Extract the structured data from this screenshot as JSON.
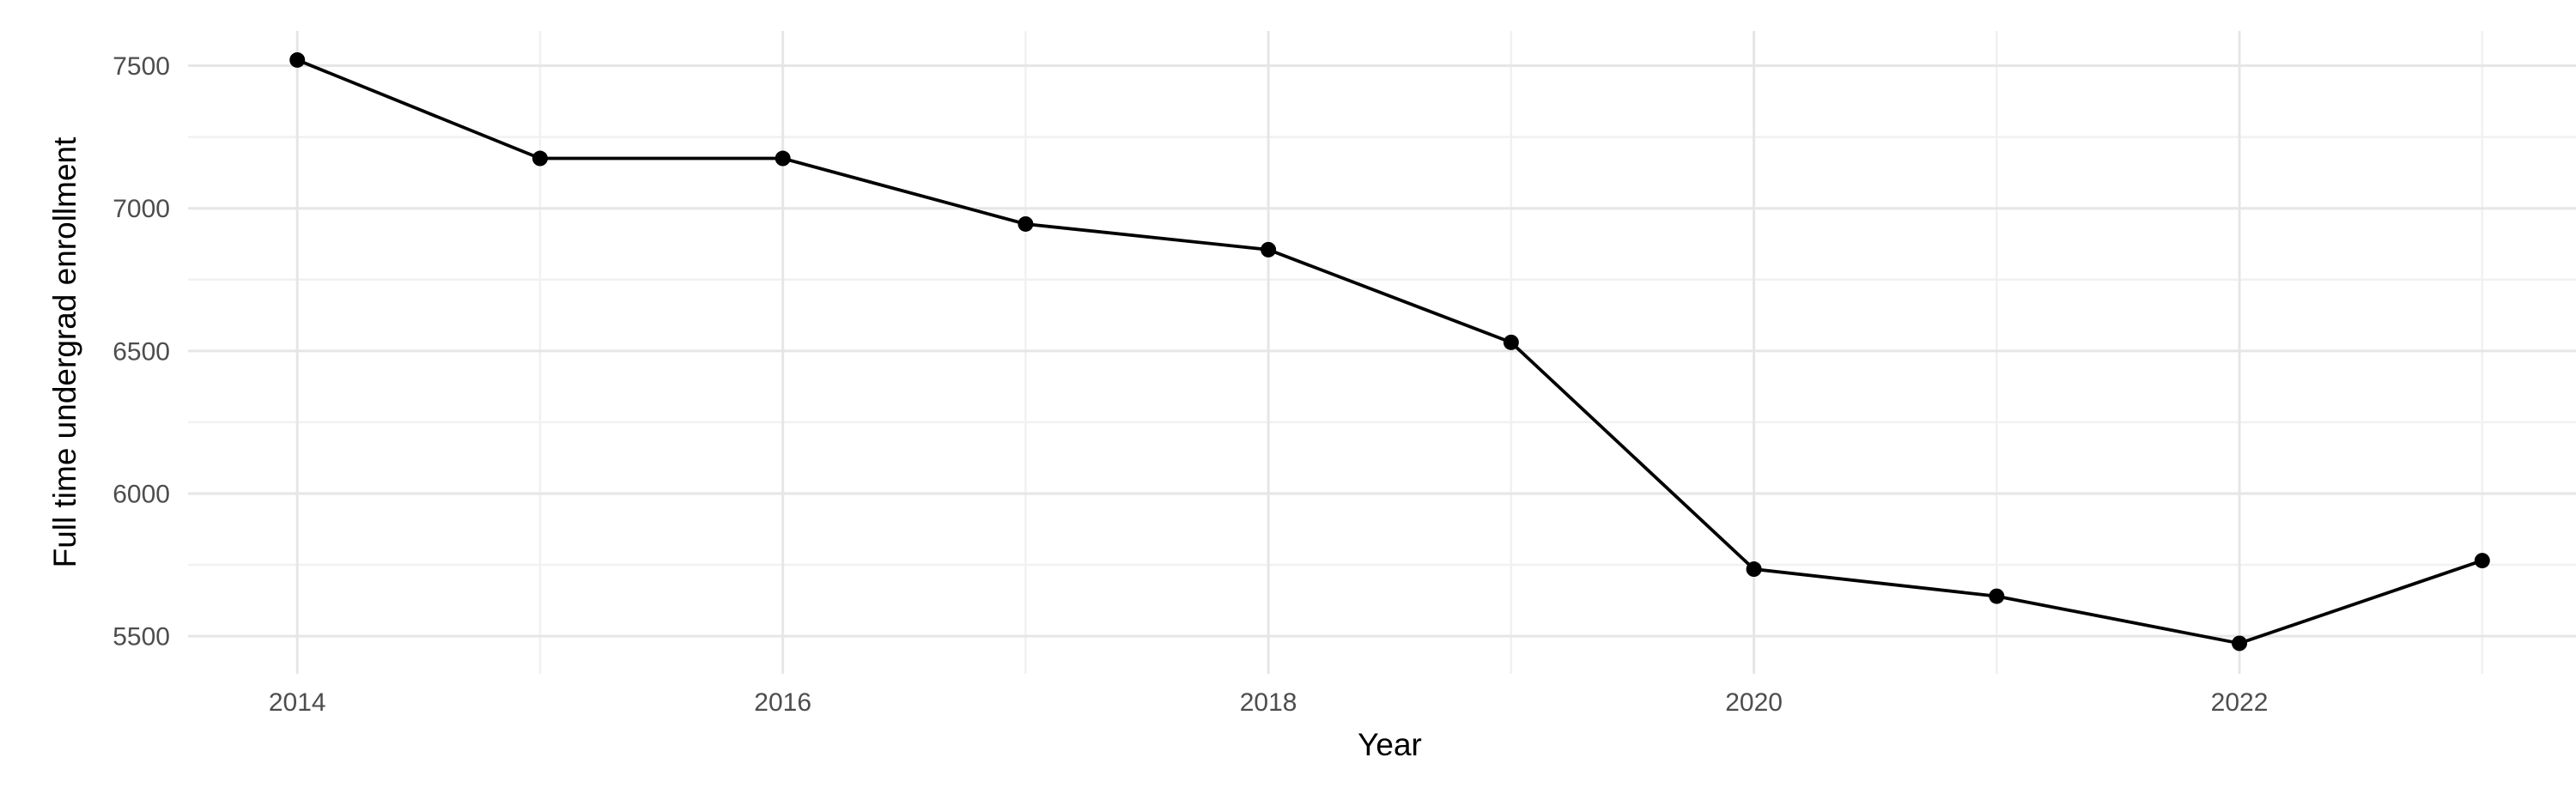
{
  "chart_data": {
    "type": "line",
    "title": "",
    "xlabel": "Year",
    "ylabel": "Full time undergrad enrollment",
    "x": [
      2014,
      2015,
      2016,
      2017,
      2018,
      2019,
      2020,
      2021,
      2022,
      2023
    ],
    "values": [
      7520,
      7175,
      7175,
      6945,
      6855,
      6530,
      5735,
      5640,
      5475,
      5765
    ],
    "series_name": "Full time undergrad enrollment",
    "x_major_ticks": [
      2014,
      2016,
      2018,
      2020,
      2022
    ],
    "x_tick_labels": [
      "2014",
      "2016",
      "2018",
      "2020",
      "2022"
    ],
    "x_minor_gridlines": [
      2015,
      2017,
      2019,
      2021,
      2023
    ],
    "y_major_ticks": [
      5500,
      6000,
      6500,
      7000,
      7500
    ],
    "y_tick_labels": [
      "5500",
      "6000",
      "6500",
      "7000",
      "7500"
    ],
    "y_minor_gridlines": [
      5750,
      6250,
      6750,
      7250
    ],
    "xlim": [
      2013.55,
      2023.45
    ],
    "ylim": [
      5368,
      7622
    ],
    "grid": "major-and-minor",
    "legend": "none",
    "style": {
      "background": "#ffffff",
      "line_color": "#000000",
      "point_color": "#000000",
      "line_width": 3.8,
      "point_radius": 9,
      "major_grid_color": "#e6e6e6",
      "minor_grid_color": "#f1f1f1",
      "major_grid_width": 3,
      "minor_grid_width": 2.5,
      "tick_label_color": "#4d4d4d",
      "axis_title_color": "#000000"
    }
  }
}
